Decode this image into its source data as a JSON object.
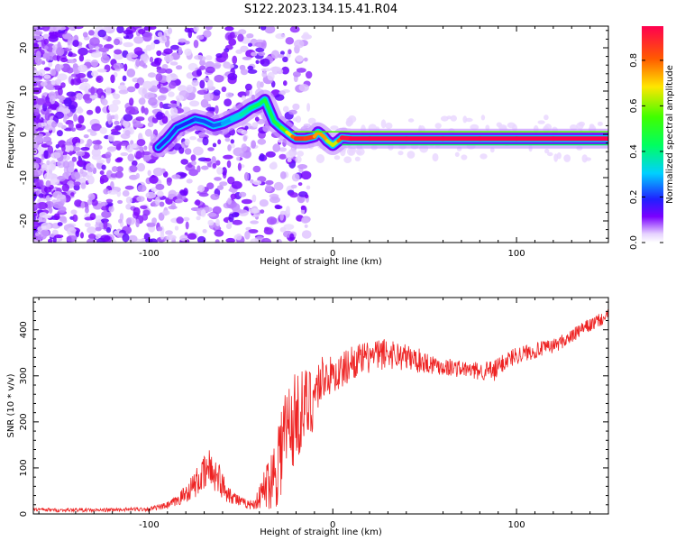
{
  "title": "S122.2023.134.15.41.R04",
  "chart_data": [
    {
      "type": "heatmap",
      "xlabel": "Height of straight line (km)",
      "ylabel": "Frequency (Hz)",
      "xlim": [
        -163,
        150
      ],
      "ylim": [
        -25,
        25
      ],
      "x_ticks": [
        -100,
        0,
        100
      ],
      "x_tick_labels": [
        "-100",
        "0",
        "100"
      ],
      "y_ticks": [
        -20,
        -10,
        0,
        10,
        20
      ],
      "y_tick_labels": [
        "-20",
        "-10",
        "0",
        "10",
        "20"
      ],
      "colorbar": {
        "label": "Normalized spectral amplitude",
        "range": [
          0,
          0.95
        ],
        "ticks": [
          0.0,
          0.2,
          0.4,
          0.6,
          0.8
        ],
        "tick_labels": [
          "0.0",
          "0.2",
          "0.4",
          "0.6",
          "0.8"
        ],
        "colormap": "gist_rainbow_r"
      },
      "ridge": {
        "x": [
          -95,
          -90,
          -85,
          -80,
          -75,
          -70,
          -65,
          -60,
          -55,
          -50,
          -45,
          -40,
          -37,
          -35,
          -32,
          -28,
          -25,
          -22,
          -20,
          -15,
          -10,
          -8,
          -5,
          -3,
          0,
          3,
          5,
          10,
          20,
          40,
          60,
          80,
          100,
          120,
          150
        ],
        "y": [
          -3,
          -1,
          1.5,
          2.5,
          3.5,
          3,
          2,
          2.5,
          3.5,
          4.5,
          6,
          7,
          8,
          6,
          3,
          1.5,
          0.5,
          -0.5,
          -1,
          -1,
          -0.5,
          0.5,
          -0.5,
          -1.5,
          -2.5,
          -1.5,
          -0.8,
          -1,
          -1,
          -1,
          -1,
          -1,
          -1,
          -1,
          -1
        ],
        "amplitude": [
          0.2,
          0.15,
          0.2,
          0.18,
          0.2,
          0.22,
          0.2,
          0.25,
          0.3,
          0.35,
          0.4,
          0.45,
          0.45,
          0.5,
          0.4,
          0.55,
          0.6,
          0.75,
          0.85,
          0.9,
          0.8,
          0.7,
          0.8,
          0.7,
          0.6,
          0.7,
          0.9,
          0.95,
          0.95,
          0.95,
          0.95,
          0.95,
          0.95,
          0.95,
          0.95
        ]
      },
      "grid": false
    },
    {
      "type": "line",
      "xlabel": "Height of straight line (km)",
      "ylabel": "SNR (10 * v/v)",
      "xlim": [
        -163,
        150
      ],
      "ylim": [
        0,
        470
      ],
      "x_ticks": [
        -100,
        0,
        100
      ],
      "x_tick_labels": [
        "-100",
        "0",
        "100"
      ],
      "y_ticks": [
        0,
        100,
        200,
        300,
        400
      ],
      "y_tick_labels": [
        "0",
        "100",
        "200",
        "300",
        "400"
      ],
      "series": [
        {
          "color": "#ee2222",
          "x": [
            -163,
            -150,
            -140,
            -130,
            -120,
            -110,
            -100,
            -95,
            -90,
            -85,
            -80,
            -75,
            -70,
            -67,
            -65,
            -62,
            -60,
            -55,
            -50,
            -45,
            -42,
            -40,
            -38,
            -35,
            -32,
            -30,
            -28,
            -25,
            -22,
            -20,
            -18,
            -15,
            -12,
            -10,
            -8,
            -5,
            0,
            5,
            10,
            15,
            20,
            25,
            30,
            35,
            40,
            45,
            50,
            55,
            60,
            65,
            70,
            75,
            80,
            85,
            88,
            90,
            95,
            100,
            105,
            110,
            115,
            120,
            125,
            130,
            135,
            140,
            145,
            150
          ],
          "y": [
            10,
            8,
            9,
            8,
            9,
            10,
            11,
            14,
            18,
            28,
            45,
            65,
            85,
            100,
            90,
            80,
            60,
            40,
            25,
            20,
            25,
            35,
            50,
            70,
            90,
            115,
            150,
            180,
            200,
            210,
            220,
            230,
            245,
            260,
            280,
            300,
            300,
            310,
            330,
            335,
            340,
            345,
            350,
            345,
            340,
            335,
            330,
            325,
            320,
            318,
            315,
            312,
            310,
            312,
            308,
            320,
            335,
            345,
            350,
            355,
            360,
            365,
            375,
            385,
            400,
            410,
            420,
            430
          ],
          "noise": [
            4,
            4,
            4,
            4,
            4,
            4,
            5,
            6,
            8,
            12,
            20,
            30,
            40,
            45,
            40,
            35,
            30,
            18,
            12,
            10,
            15,
            25,
            40,
            60,
            80,
            100,
            120,
            120,
            110,
            100,
            95,
            90,
            80,
            70,
            60,
            50,
            40,
            40,
            38,
            36,
            35,
            35,
            35,
            32,
            30,
            28,
            25,
            22,
            20,
            20,
            18,
            18,
            20,
            22,
            25,
            22,
            20,
            20,
            18,
            18,
            16,
            16,
            16,
            15,
            15,
            15,
            15,
            15
          ]
        }
      ],
      "grid": false
    }
  ]
}
